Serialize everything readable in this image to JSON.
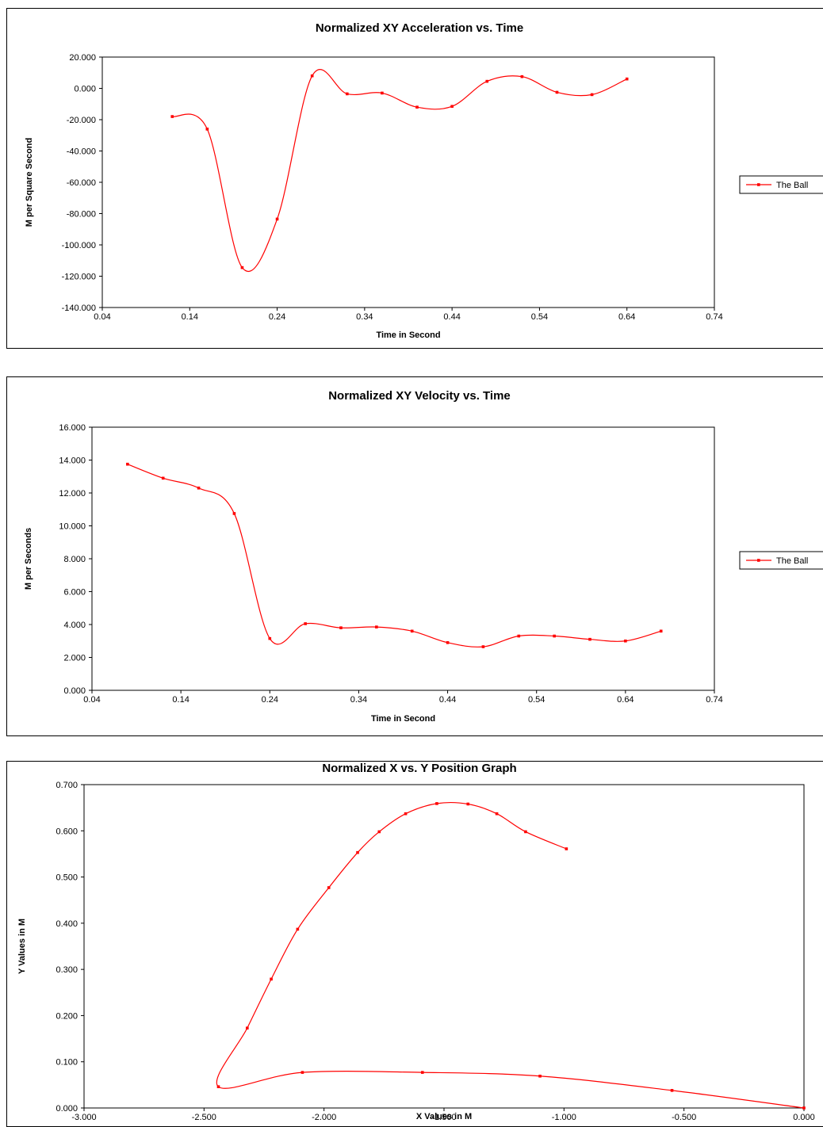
{
  "chart_data": [
    {
      "type": "line",
      "title": "Normalized XY Acceleration vs. Time",
      "xlabel": "Time in Second",
      "ylabel": "M per Square Second",
      "xlim": [
        0.04,
        0.74
      ],
      "ylim": [
        -140,
        20
      ],
      "x_ticks": [
        "0.04",
        "0.14",
        "0.24",
        "0.34",
        "0.44",
        "0.54",
        "0.64",
        "0.74"
      ],
      "y_ticks": [
        "20.000",
        "0.000",
        "-20.000",
        "-40.000",
        "-60.000",
        "-80.000",
        "-100.000",
        "-120.000",
        "-140.000"
      ],
      "grid": false,
      "legend": "right",
      "series": [
        {
          "name": "The Ball",
          "color": "#ff0000",
          "x": [
            0.12,
            0.16,
            0.2,
            0.24,
            0.28,
            0.32,
            0.36,
            0.4,
            0.44,
            0.48,
            0.52,
            0.56,
            0.6,
            0.64
          ],
          "y": [
            -18,
            -26,
            -114.5,
            -83.5,
            8,
            -3.5,
            -3,
            -12,
            -11.5,
            4.5,
            7.5,
            -2.5,
            -4,
            6
          ]
        }
      ]
    },
    {
      "type": "line",
      "title": "Normalized XY Velocity vs. Time",
      "xlabel": "Time in Second",
      "ylabel": "M per Seconds",
      "xlim": [
        0.04,
        0.74
      ],
      "ylim": [
        0,
        16
      ],
      "x_ticks": [
        "0.04",
        "0.14",
        "0.24",
        "0.34",
        "0.44",
        "0.54",
        "0.64",
        "0.74"
      ],
      "y_ticks": [
        "16.000",
        "14.000",
        "12.000",
        "10.000",
        "8.000",
        "6.000",
        "4.000",
        "2.000",
        "0.000"
      ],
      "grid": false,
      "legend": "right",
      "series": [
        {
          "name": "The Ball",
          "color": "#ff0000",
          "x": [
            0.08,
            0.12,
            0.16,
            0.2,
            0.24,
            0.28,
            0.32,
            0.36,
            0.4,
            0.44,
            0.48,
            0.52,
            0.56,
            0.6,
            0.64,
            0.68
          ],
          "y": [
            13.75,
            12.9,
            12.3,
            10.75,
            3.15,
            4.05,
            3.8,
            3.85,
            3.6,
            2.9,
            2.65,
            3.3,
            3.3,
            3.1,
            3.0,
            3.6
          ]
        }
      ]
    },
    {
      "type": "line",
      "title": "Normalized X vs. Y Position Graph",
      "xlabel": "X Values in M",
      "ylabel": "Y Values in M",
      "xlim": [
        -3,
        0
      ],
      "ylim": [
        0,
        0.7
      ],
      "x_ticks": [
        "-3.000",
        "-2.500",
        "-2.000",
        "-1.500",
        "-1.000",
        "-0.500",
        "0.000"
      ],
      "y_ticks": [
        "0.700",
        "0.600",
        "0.500",
        "0.400",
        "0.300",
        "0.200",
        "0.100",
        "0.000"
      ],
      "grid": false,
      "series": [
        {
          "color": "#ff0000",
          "x": [
            0.0,
            -0.55,
            -1.1,
            -1.59,
            -2.09,
            -2.44,
            -2.32,
            -2.22,
            -2.11,
            -1.98,
            -1.86,
            -1.77,
            -1.66,
            -1.53,
            -1.4,
            -1.28,
            -1.16,
            -0.99
          ],
          "y": [
            0.0,
            0.038,
            0.069,
            0.077,
            0.077,
            0.046,
            0.173,
            0.279,
            0.387,
            0.477,
            0.553,
            0.598,
            0.637,
            0.659,
            0.658,
            0.637,
            0.598,
            0.561
          ]
        }
      ]
    }
  ]
}
